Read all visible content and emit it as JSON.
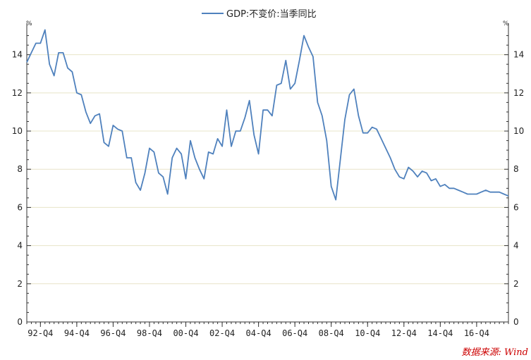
{
  "chart_data": {
    "type": "line",
    "title": "",
    "xlabel": "",
    "ylabel": "",
    "y_unit_left": "%",
    "y_unit_right": "%",
    "ylim": [
      0,
      15.5
    ],
    "yticks": [
      0,
      2,
      4,
      6,
      8,
      10,
      12,
      14
    ],
    "x_tick_labels": [
      "92-Q4",
      "94-Q4",
      "96-Q4",
      "98-Q4",
      "00-Q4",
      "02-Q4",
      "04-Q4",
      "06-Q4",
      "08-Q4",
      "10-Q4",
      "12-Q4",
      "14-Q4",
      "16-Q4"
    ],
    "x_tick_quarter_index": [
      4,
      12,
      20,
      28,
      36,
      44,
      52,
      60,
      68,
      76,
      84,
      92,
      100
    ],
    "x_start": "1992-Q1",
    "x_end": "2018-Q2",
    "legend": {
      "position": "top-center"
    },
    "grid": {
      "horizontal": true,
      "vertical": false
    },
    "source": "数据来源: Wind",
    "colors": {
      "series": "#4f81bd",
      "grid": "#e8e4c8",
      "axis": "#333333",
      "source": "#cc0000"
    },
    "series": [
      {
        "name": "GDP:不变价:当季同比",
        "values": [
          13.6,
          14.1,
          14.6,
          14.6,
          15.3,
          13.5,
          12.9,
          14.1,
          14.1,
          13.3,
          13.1,
          12.0,
          11.9,
          11.0,
          10.4,
          10.8,
          10.9,
          9.4,
          9.2,
          10.3,
          10.1,
          10.0,
          8.6,
          8.6,
          7.3,
          6.9,
          7.8,
          9.1,
          8.9,
          7.8,
          7.6,
          6.7,
          8.6,
          9.1,
          8.8,
          7.5,
          9.5,
          8.6,
          8.0,
          7.5,
          8.9,
          8.8,
          9.6,
          9.2,
          11.1,
          9.2,
          10.0,
          10.0,
          10.7,
          11.6,
          9.8,
          8.8,
          11.1,
          11.1,
          10.8,
          12.4,
          12.5,
          13.7,
          12.2,
          12.5,
          13.7,
          15.0,
          14.4,
          13.9,
          11.5,
          10.8,
          9.5,
          7.1,
          6.4,
          8.5,
          10.6,
          11.9,
          12.2,
          10.8,
          9.9,
          9.9,
          10.2,
          10.1,
          9.6,
          9.1,
          8.6,
          8.0,
          7.6,
          7.5,
          8.1,
          7.9,
          7.6,
          7.9,
          7.8,
          7.4,
          7.5,
          7.1,
          7.2,
          7.0,
          7.0,
          6.9,
          6.8,
          6.7,
          6.7,
          6.7,
          6.8,
          6.9,
          6.8,
          6.8,
          6.8,
          6.7,
          6.6
        ]
      }
    ]
  }
}
